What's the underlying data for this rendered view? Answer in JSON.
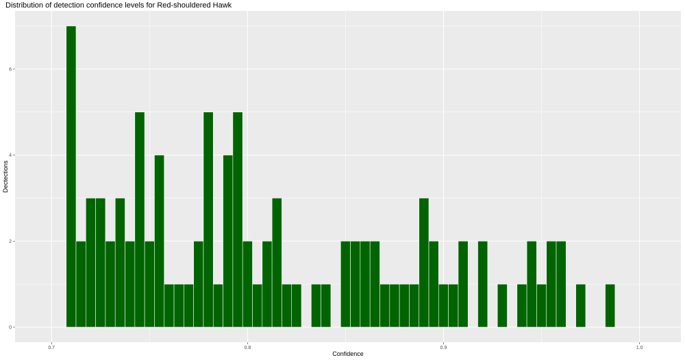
{
  "chart_data": {
    "type": "bar",
    "title": "Distribution of detection confidence levels for Red-shouldered Hawk",
    "xlabel": "Confidence",
    "ylabel": "Dectections",
    "xlim": [
      0.6814,
      1.0211
    ],
    "ylim": [
      -0.35,
      7.35
    ],
    "xticks": [
      0.7,
      0.8,
      0.9,
      1.0
    ],
    "xtick_labels": [
      "0.7",
      "0.8",
      "0.9",
      "1.0"
    ],
    "yticks": [
      0,
      2,
      4,
      6
    ],
    "ytick_labels": [
      "0",
      "2",
      "4",
      "6"
    ],
    "grid": true,
    "legend": "none",
    "bin_width": 0.005,
    "bin_centers": [
      0.71,
      0.715,
      0.72,
      0.725,
      0.73,
      0.735,
      0.74,
      0.745,
      0.75,
      0.755,
      0.76,
      0.765,
      0.77,
      0.775,
      0.78,
      0.785,
      0.79,
      0.795,
      0.8,
      0.805,
      0.81,
      0.815,
      0.82,
      0.825,
      0.83,
      0.835,
      0.84,
      0.845,
      0.85,
      0.855,
      0.86,
      0.865,
      0.87,
      0.875,
      0.88,
      0.885,
      0.89,
      0.895,
      0.9,
      0.905,
      0.91,
      0.915,
      0.92,
      0.925,
      0.93,
      0.935,
      0.94,
      0.945,
      0.95,
      0.955,
      0.96,
      0.965,
      0.97,
      0.975,
      0.98,
      0.985,
      0.99
    ],
    "values": [
      7,
      2,
      3,
      3,
      2,
      3,
      2,
      5,
      2,
      4,
      1,
      1,
      1,
      2,
      5,
      1,
      4,
      5,
      2,
      1,
      2,
      3,
      1,
      1,
      0,
      1,
      1,
      0,
      2,
      2,
      2,
      2,
      1,
      1,
      1,
      1,
      3,
      2,
      1,
      1,
      2,
      0,
      2,
      0,
      1,
      0,
      1,
      2,
      1,
      2,
      2,
      0,
      1,
      0,
      0,
      1,
      0
    ],
    "bar_color": "#006400",
    "bar_outline": "#ffffff",
    "panel_background": "#ebebeb",
    "grid_color": "#ffffff"
  }
}
